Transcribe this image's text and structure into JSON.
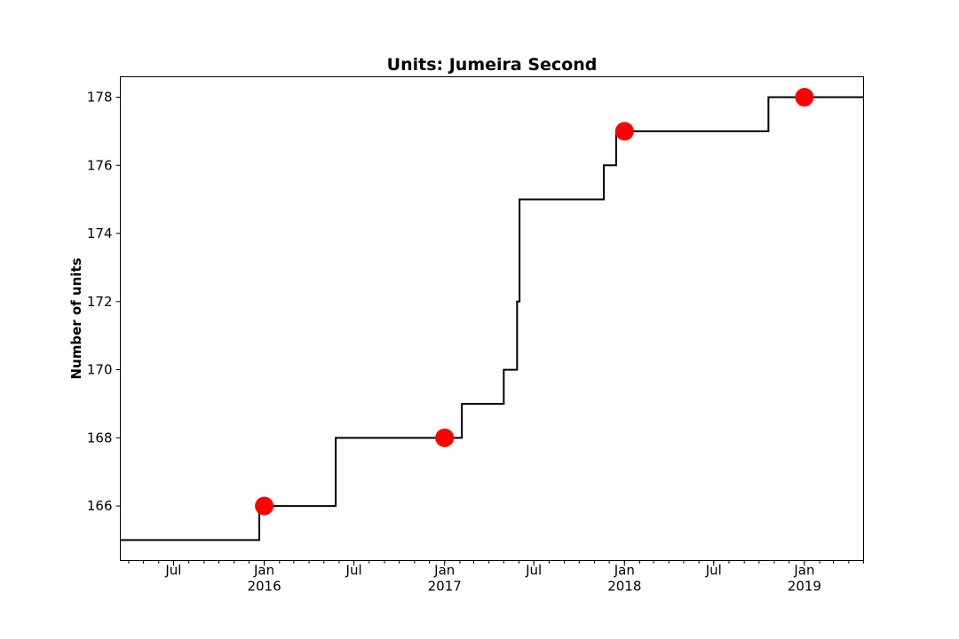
{
  "chart_data": {
    "type": "line",
    "drawstyle": "steps-post",
    "title": "Units: Jumeira Second",
    "xlabel": "",
    "ylabel": "Number of units",
    "xlim": [
      "2015-03-15",
      "2019-05-01"
    ],
    "ylim": [
      164.4,
      178.6
    ],
    "grid": false,
    "yticks": [
      166,
      168,
      170,
      172,
      174,
      176,
      178
    ],
    "ytick_labels": [
      "166",
      "168",
      "170",
      "172",
      "174",
      "176",
      "178"
    ],
    "xticks": [
      {
        "date": "2015-07-01",
        "label": "Jul",
        "sublabel": ""
      },
      {
        "date": "2016-01-01",
        "label": "Jan",
        "sublabel": "2016"
      },
      {
        "date": "2016-07-01",
        "label": "Jul",
        "sublabel": ""
      },
      {
        "date": "2017-01-01",
        "label": "Jan",
        "sublabel": "2017"
      },
      {
        "date": "2017-07-01",
        "label": "Jul",
        "sublabel": ""
      },
      {
        "date": "2018-01-01",
        "label": "Jan",
        "sublabel": "2018"
      },
      {
        "date": "2018-07-01",
        "label": "Jul",
        "sublabel": ""
      },
      {
        "date": "2019-01-01",
        "label": "Jan",
        "sublabel": "2019"
      }
    ],
    "series": [
      {
        "name": "",
        "color": "#000000",
        "points": [
          {
            "x": "2015-03-15",
            "y": 165
          },
          {
            "x": "2015-12-22",
            "y": 166
          },
          {
            "x": "2016-05-25",
            "y": 168
          },
          {
            "x": "2017-02-05",
            "y": 169
          },
          {
            "x": "2017-05-01",
            "y": 170
          },
          {
            "x": "2017-05-28",
            "y": 172
          },
          {
            "x": "2017-06-02",
            "y": 175
          },
          {
            "x": "2017-11-20",
            "y": 176
          },
          {
            "x": "2017-12-15",
            "y": 177
          },
          {
            "x": "2018-10-20",
            "y": 178
          },
          {
            "x": "2019-05-01",
            "y": 178
          }
        ]
      }
    ],
    "markers": {
      "color": "#ff0000",
      "points": [
        {
          "x": "2016-01-01",
          "y": 166
        },
        {
          "x": "2017-01-01",
          "y": 168
        },
        {
          "x": "2018-01-01",
          "y": 177
        },
        {
          "x": "2019-01-01",
          "y": 178
        }
      ]
    }
  }
}
